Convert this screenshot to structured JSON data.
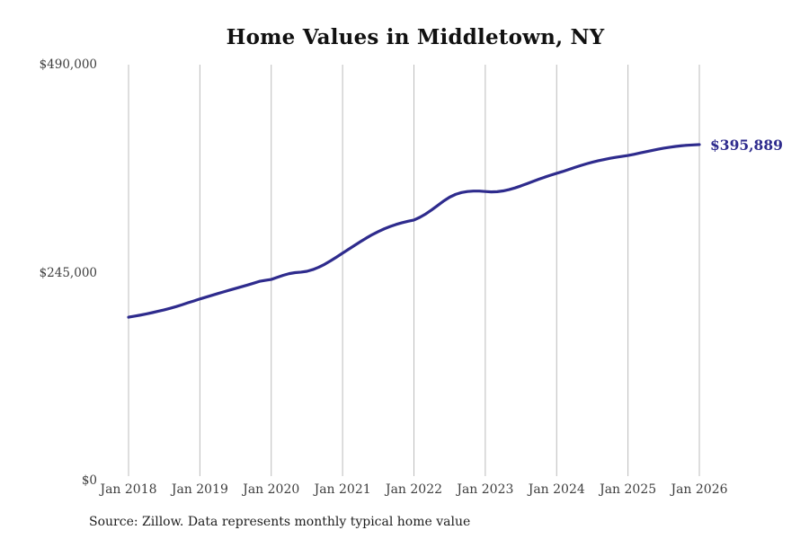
{
  "chart": {
    "title": "Home Values in Middletown, NY",
    "end_label": "$395,889",
    "source": "Source: Zillow. Data represents monthly typical home value",
    "accent_color": "#2e2b8d",
    "grid_color": "#bcbcbc",
    "tick_text_color": "#3d3d3d"
  },
  "chart_data": {
    "type": "line",
    "title": "Home Values in Middletown, NY",
    "xlabel": "",
    "ylabel": "",
    "ylim": [
      0,
      490000
    ],
    "grid": "vertical-only",
    "legend": "none",
    "y_ticks": [
      {
        "label": "$490,000",
        "value": 490000
      },
      {
        "label": "$245,000",
        "value": 245000
      },
      {
        "label": "$0",
        "value": 0
      }
    ],
    "x_ticks": [
      "Jan 2018",
      "Jan 2019",
      "Jan 2020",
      "Jan 2021",
      "Jan 2022",
      "Jan 2023",
      "Jan 2024",
      "Jan 2025",
      "Jan 2026"
    ],
    "series": [
      {
        "name": "Monthly typical home value",
        "start_month": "Jan 2018",
        "end_month": "Jan 2026",
        "final_value_label": "$395,889",
        "values": [
          192500,
          193700,
          195000,
          196400,
          197900,
          199500,
          201200,
          203000,
          205000,
          207200,
          209500,
          211700,
          214000,
          216100,
          218200,
          220300,
          222400,
          224400,
          226400,
          228400,
          230400,
          232500,
          234700,
          235900,
          237000,
          239400,
          241800,
          243800,
          245000,
          245600,
          246600,
          248600,
          251400,
          254900,
          259000,
          263400,
          268000,
          272500,
          277000,
          281500,
          285800,
          289800,
          293400,
          296600,
          299400,
          301800,
          303800,
          305500,
          307000,
          310200,
          314200,
          319000,
          324200,
          329400,
          333900,
          337200,
          339400,
          340600,
          341100,
          341100,
          340600,
          340100,
          340400,
          341300,
          342800,
          344800,
          347200,
          349800,
          352400,
          355000,
          357500,
          359800,
          362000,
          364100,
          366400,
          368800,
          371100,
          373200,
          375100,
          376800,
          378300,
          379700,
          380900,
          382000,
          383000,
          384400,
          385900,
          387400,
          388900,
          390300,
          391600,
          392700,
          393700,
          394500,
          395100,
          395500,
          395889
        ]
      }
    ]
  }
}
